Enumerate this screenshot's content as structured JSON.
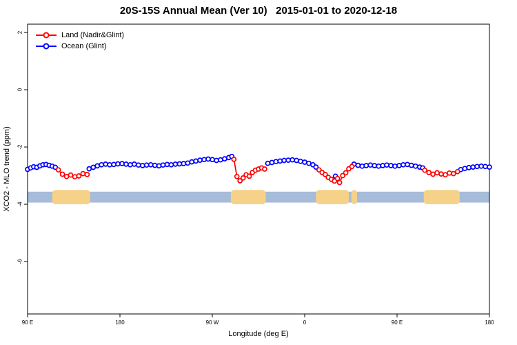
{
  "chart_data": {
    "type": "line",
    "title": "20S-15S Annual Mean (Ver 10)   2015-01-01 to 2020-12-18",
    "xlabel": "Longitude (deg E)",
    "ylabel": "XCO2 - MLO trend (ppm)",
    "xlim": [
      90,
      540
    ],
    "ylim": [
      -7.83,
      2.29
    ],
    "grid": "off",
    "legend_position": "top-left-inside",
    "x_ticks": [
      {
        "value": 90,
        "label": "90 E"
      },
      {
        "value": 180,
        "label": "180"
      },
      {
        "value": 270,
        "label": "90 W"
      },
      {
        "value": 360,
        "label": "0"
      },
      {
        "value": 450,
        "label": "90 E"
      },
      {
        "value": 540,
        "label": "180"
      }
    ],
    "y_ticks": [
      {
        "value": 2,
        "label": "2"
      },
      {
        "value": 0,
        "label": "0"
      },
      {
        "value": -2,
        "label": "-2"
      },
      {
        "value": -4,
        "label": "-4"
      },
      {
        "value": -6,
        "label": "-6"
      }
    ],
    "legend": [
      {
        "label": "Land (Nadir&Glint)",
        "color": "#ff0000"
      },
      {
        "label": "Ocean (Glint)",
        "color": "#0000ff"
      }
    ],
    "map_strip": {
      "y_range": [
        -3.56,
        -3.94
      ],
      "ocean_color": "#a6bcd9",
      "land_color": "#f6d289",
      "land_segments": [
        [
          114,
          151
        ],
        [
          288,
          322
        ],
        [
          371,
          403
        ],
        [
          405.5,
          411
        ],
        [
          476,
          511
        ]
      ]
    },
    "series": [
      {
        "name": "Ocean (Glint)",
        "color": "#0000ff",
        "marker": "open-circle",
        "segments": [
          [
            [
              90,
              -2.78
            ],
            [
              93,
              -2.73
            ],
            [
              96,
              -2.69
            ],
            [
              99,
              -2.71
            ],
            [
              102,
              -2.66
            ],
            [
              105,
              -2.62
            ],
            [
              108,
              -2.61
            ],
            [
              111,
              -2.64
            ],
            [
              114,
              -2.67
            ],
            [
              117,
              -2.71
            ]
          ],
          [
            [
              150,
              -2.76
            ],
            [
              154,
              -2.71
            ],
            [
              158,
              -2.66
            ],
            [
              162,
              -2.62
            ],
            [
              166,
              -2.6
            ],
            [
              170,
              -2.62
            ],
            [
              174,
              -2.61
            ],
            [
              178,
              -2.59
            ],
            [
              182,
              -2.58
            ],
            [
              186,
              -2.6
            ],
            [
              190,
              -2.62
            ],
            [
              194,
              -2.6
            ],
            [
              198,
              -2.63
            ],
            [
              202,
              -2.65
            ],
            [
              206,
              -2.63
            ],
            [
              210,
              -2.62
            ],
            [
              214,
              -2.64
            ],
            [
              218,
              -2.66
            ],
            [
              222,
              -2.63
            ],
            [
              226,
              -2.61
            ],
            [
              230,
              -2.62
            ],
            [
              234,
              -2.6
            ],
            [
              238,
              -2.59
            ],
            [
              242,
              -2.58
            ],
            [
              246,
              -2.56
            ],
            [
              250,
              -2.52
            ],
            [
              254,
              -2.49
            ],
            [
              258,
              -2.46
            ],
            [
              262,
              -2.44
            ],
            [
              266,
              -2.42
            ],
            [
              270,
              -2.44
            ],
            [
              274,
              -2.47
            ],
            [
              278,
              -2.45
            ],
            [
              282,
              -2.41
            ],
            [
              286,
              -2.37
            ],
            [
              289,
              -2.33
            ]
          ],
          [
            [
              324,
              -2.57
            ],
            [
              328,
              -2.54
            ],
            [
              332,
              -2.51
            ],
            [
              336,
              -2.49
            ],
            [
              340,
              -2.47
            ],
            [
              344,
              -2.46
            ],
            [
              348,
              -2.45
            ],
            [
              352,
              -2.47
            ],
            [
              356,
              -2.5
            ],
            [
              360,
              -2.53
            ],
            [
              364,
              -2.57
            ],
            [
              368,
              -2.62
            ],
            [
              371,
              -2.7
            ]
          ],
          [
            [
              390,
              -3.02
            ]
          ],
          [
            [
              408,
              -2.6
            ],
            [
              412,
              -2.64
            ],
            [
              416,
              -2.67
            ],
            [
              420,
              -2.65
            ],
            [
              424,
              -2.63
            ],
            [
              428,
              -2.65
            ],
            [
              432,
              -2.67
            ],
            [
              436,
              -2.65
            ],
            [
              440,
              -2.63
            ],
            [
              444,
              -2.65
            ],
            [
              448,
              -2.67
            ],
            [
              452,
              -2.65
            ],
            [
              456,
              -2.62
            ],
            [
              460,
              -2.61
            ],
            [
              464,
              -2.64
            ],
            [
              468,
              -2.67
            ],
            [
              472,
              -2.7
            ],
            [
              475,
              -2.73
            ]
          ],
          [
            [
              512,
              -2.79
            ],
            [
              516,
              -2.75
            ],
            [
              520,
              -2.72
            ],
            [
              524,
              -2.7
            ],
            [
              528,
              -2.68
            ],
            [
              532,
              -2.67
            ],
            [
              536,
              -2.68
            ],
            [
              540,
              -2.7
            ]
          ]
        ]
      },
      {
        "name": "Land (Nadir&Glint)",
        "color": "#ff0000",
        "marker": "open-circle",
        "segments": [
          [
            [
              120,
              -2.8
            ],
            [
              124,
              -2.95
            ],
            [
              128,
              -3.03
            ],
            [
              132,
              -2.98
            ],
            [
              136,
              -3.04
            ],
            [
              140,
              -3.01
            ],
            [
              144,
              -2.93
            ],
            [
              148,
              -2.96
            ]
          ],
          [
            [
              291,
              -2.43
            ],
            [
              294,
              -3.03
            ],
            [
              297,
              -3.18
            ],
            [
              300,
              -3.08
            ],
            [
              303,
              -2.97
            ],
            [
              306,
              -3.02
            ],
            [
              309,
              -2.89
            ],
            [
              312,
              -2.81
            ],
            [
              315,
              -2.77
            ],
            [
              318,
              -2.73
            ],
            [
              321,
              -2.77
            ]
          ],
          [
            [
              374,
              -2.8
            ],
            [
              377,
              -2.89
            ],
            [
              380,
              -2.96
            ],
            [
              383,
              -3.06
            ],
            [
              386,
              -3.13
            ],
            [
              389,
              -3.19
            ],
            [
              392,
              -3.1
            ],
            [
              394,
              -3.24
            ],
            [
              397,
              -3.0
            ],
            [
              400,
              -2.9
            ],
            [
              403,
              -2.76
            ],
            [
              406,
              -2.68
            ]
          ],
          [
            [
              477,
              -2.81
            ],
            [
              481,
              -2.89
            ],
            [
              485,
              -2.95
            ],
            [
              489,
              -2.9
            ],
            [
              493,
              -2.94
            ],
            [
              497,
              -2.97
            ],
            [
              501,
              -2.91
            ],
            [
              505,
              -2.93
            ],
            [
              509,
              -2.86
            ]
          ]
        ]
      }
    ]
  }
}
